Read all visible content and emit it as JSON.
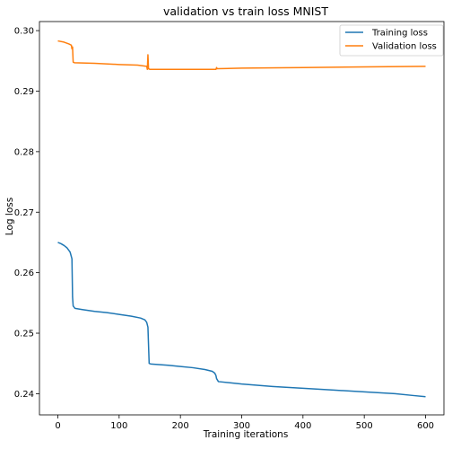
{
  "chart_data": {
    "type": "line",
    "title": "validation vs train loss MNIST",
    "xlabel": "Training iterations",
    "ylabel": "Log loss",
    "xlim": [
      -30,
      630
    ],
    "ylim": [
      0.2365,
      0.3015
    ],
    "x_ticks": [
      0,
      100,
      200,
      300,
      400,
      500,
      600
    ],
    "x_tick_labels": [
      "0",
      "100",
      "200",
      "300",
      "400",
      "500",
      "600"
    ],
    "y_ticks": [
      0.24,
      0.25,
      0.26,
      0.27,
      0.28,
      0.29,
      0.3
    ],
    "y_tick_labels": [
      "0.24",
      "0.25",
      "0.26",
      "0.27",
      "0.28",
      "0.29",
      "0.30"
    ],
    "grid": false,
    "legend_position": "top-right",
    "series": [
      {
        "name": "Training loss",
        "color": "#1f77b4",
        "points": [
          [
            0,
            0.265
          ],
          [
            5,
            0.2648
          ],
          [
            10,
            0.2645
          ],
          [
            15,
            0.2641
          ],
          [
            20,
            0.2634
          ],
          [
            23,
            0.2623
          ],
          [
            24,
            0.256
          ],
          [
            25,
            0.2545
          ],
          [
            28,
            0.2541
          ],
          [
            40,
            0.2539
          ],
          [
            60,
            0.2536
          ],
          [
            80,
            0.2534
          ],
          [
            100,
            0.2531
          ],
          [
            120,
            0.2528
          ],
          [
            135,
            0.2525
          ],
          [
            142,
            0.2522
          ],
          [
            145,
            0.2518
          ],
          [
            147,
            0.251
          ],
          [
            148,
            0.248
          ],
          [
            149,
            0.245
          ],
          [
            152,
            0.2449
          ],
          [
            180,
            0.2447
          ],
          [
            200,
            0.2445
          ],
          [
            220,
            0.2443
          ],
          [
            240,
            0.244
          ],
          [
            252,
            0.2437
          ],
          [
            256,
            0.2434
          ],
          [
            258,
            0.243
          ],
          [
            259,
            0.2425
          ],
          [
            262,
            0.242
          ],
          [
            300,
            0.2416
          ],
          [
            350,
            0.2412
          ],
          [
            400,
            0.2409
          ],
          [
            450,
            0.2406
          ],
          [
            500,
            0.2403
          ],
          [
            550,
            0.24
          ],
          [
            580,
            0.2397
          ],
          [
            600,
            0.2395
          ]
        ]
      },
      {
        "name": "Validation loss",
        "color": "#ff7f0e",
        "points": [
          [
            0,
            0.2983
          ],
          [
            10,
            0.2981
          ],
          [
            18,
            0.2978
          ],
          [
            22,
            0.2976
          ],
          [
            23,
            0.297
          ],
          [
            24,
            0.2973
          ],
          [
            25,
            0.2948
          ],
          [
            27,
            0.2947
          ],
          [
            60,
            0.2946
          ],
          [
            100,
            0.2944
          ],
          [
            130,
            0.2943
          ],
          [
            145,
            0.2941
          ],
          [
            146,
            0.2936
          ],
          [
            147,
            0.296
          ],
          [
            148,
            0.2937
          ],
          [
            150,
            0.2936
          ],
          [
            200,
            0.2936
          ],
          [
            258,
            0.2936
          ],
          [
            259,
            0.2939
          ],
          [
            260,
            0.2937
          ],
          [
            300,
            0.2938
          ],
          [
            400,
            0.2939
          ],
          [
            500,
            0.294
          ],
          [
            600,
            0.2941
          ]
        ]
      }
    ]
  }
}
